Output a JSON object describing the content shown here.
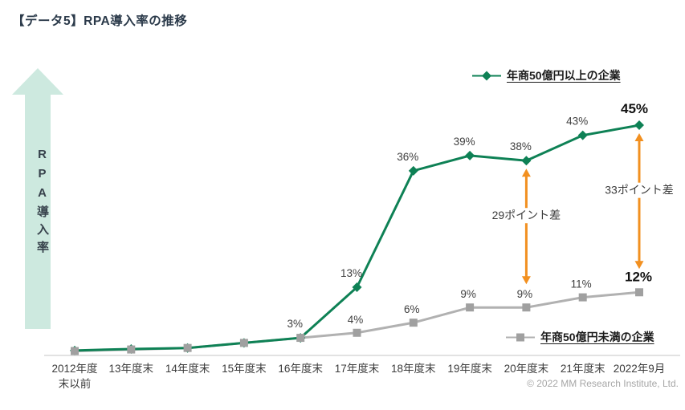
{
  "page": {
    "title": "【データ5】RPA導入率の推移",
    "copyright": "© 2022 MM Research Institute, Ltd."
  },
  "y_axis": {
    "label": "RPA導入率",
    "arrow_color": "#cde9df"
  },
  "chart_data": {
    "type": "line",
    "title": "RPA導入率の推移",
    "xlabel": "",
    "ylabel": "RPA導入率",
    "ylim": [
      0,
      50
    ],
    "grid": false,
    "categories": [
      "2012年度\n末以前",
      "13年度末",
      "14年度末",
      "15年度末",
      "16年度末",
      "17年度末",
      "18年度末",
      "19年度末",
      "20年度末",
      "21年度末",
      "2022年9月"
    ],
    "series": [
      {
        "name": "年商50億円以上の企業",
        "marker": "diamond",
        "color": "#0e8155",
        "marker_color": "#0e8155",
        "values": [
          0.5,
          0.8,
          1,
          2,
          3,
          13,
          36,
          39,
          38,
          43,
          45
        ],
        "labels": [
          "",
          "",
          "",
          "",
          "3%",
          "13%",
          "36%",
          "39%",
          "38%",
          "43%",
          "45%"
        ],
        "emphasize_last_label": true,
        "legend_position": "top-right"
      },
      {
        "name": "年商50億円未満の企業",
        "marker": "square",
        "color": "#b1b1b1",
        "marker_color": "#a0a0a0",
        "values": [
          0.4,
          0.7,
          1,
          2,
          3,
          4,
          6,
          9,
          9,
          11,
          12
        ],
        "labels": [
          "",
          "",
          "",
          "",
          "",
          "4%",
          "6%",
          "9%",
          "9%",
          "11%",
          "12%"
        ],
        "emphasize_last_label": true,
        "legend_position": "bottom-right"
      }
    ],
    "annotations": [
      {
        "category_index": 8,
        "label": "29ポイント差",
        "from_value": 38,
        "to_value": 9,
        "color": "#f29020"
      },
      {
        "category_index": 10,
        "label": "33ポイント差",
        "from_value": 45,
        "to_value": 12,
        "color": "#f29020"
      }
    ],
    "axis_line_color": "#d9d9d9"
  }
}
